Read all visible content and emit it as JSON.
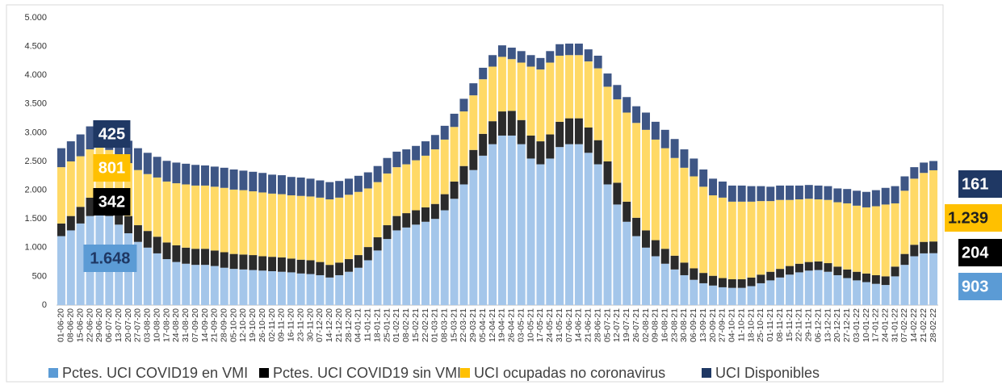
{
  "chart_data": {
    "type": "stacked_bar",
    "categories": [
      "01-06-20",
      "08-06-20",
      "15-06-20",
      "22-06-20",
      "29-06-20",
      "06-07-20",
      "13-07-20",
      "20-07-20",
      "27-07-20",
      "03-08-20",
      "10-08-20",
      "17-08-20",
      "24-08-20",
      "31-08-20",
      "07-09-20",
      "14-09-20",
      "21-09-20",
      "28-09-20",
      "05-10-20",
      "12-10-20",
      "19-10-20",
      "26-10-20",
      "02-11-20",
      "09-11-20",
      "16-11-20",
      "23-11-20",
      "30-11-20",
      "07-12-20",
      "14-12-20",
      "21-12-20",
      "28-12-20",
      "04-01-21",
      "11-01-21",
      "18-01-21",
      "25-01-21",
      "01-02-21",
      "08-02-21",
      "15-02-21",
      "22-02-21",
      "01-03-21",
      "08-03-21",
      "15-03-21",
      "22-03-21",
      "29-03-21",
      "05-04-21",
      "12-04-21",
      "19-04-21",
      "26-04-21",
      "03-05-21",
      "10-05-21",
      "17-05-21",
      "24-05-21",
      "31-05-21",
      "07-06-21",
      "14-06-21",
      "21-06-21",
      "28-06-21",
      "05-07-21",
      "12-07-21",
      "19-07-21",
      "26-07-21",
      "02-08-21",
      "09-08-21",
      "16-08-21",
      "23-08-21",
      "30-08-21",
      "06-09-21",
      "13-09-21",
      "20-09-21",
      "27-09-21",
      "04-10-21",
      "11-10-21",
      "18-10-21",
      "25-10-21",
      "01-11-21",
      "08-11-21",
      "15-11-21",
      "22-11-21",
      "29-11-21",
      "06-12-21",
      "13-12-21",
      "20-12-21",
      "27-12-21",
      "03-01-22",
      "10-01-22",
      "17-01-22",
      "24-01-22",
      "31-01-22",
      "07-02-22",
      "14-02-22",
      "21-02-22",
      "28-02-22"
    ],
    "series": [
      {
        "name": "Pctes. UCI COVID19 en VMI",
        "color": "#a4c6ea",
        "values": [
          1200,
          1300,
          1420,
          1550,
          1648,
          1550,
          1400,
          1250,
          1100,
          1000,
          900,
          800,
          750,
          720,
          700,
          700,
          680,
          650,
          630,
          620,
          610,
          600,
          590,
          580,
          570,
          550,
          540,
          520,
          480,
          520,
          580,
          650,
          780,
          950,
          1150,
          1300,
          1350,
          1400,
          1450,
          1500,
          1650,
          1850,
          2100,
          2350,
          2600,
          2800,
          2950,
          2950,
          2800,
          2550,
          2450,
          2550,
          2750,
          2800,
          2800,
          2650,
          2450,
          2100,
          1750,
          1450,
          1200,
          1000,
          850,
          720,
          620,
          520,
          440,
          380,
          340,
          310,
          300,
          300,
          330,
          380,
          430,
          480,
          530,
          570,
          600,
          610,
          580,
          520,
          470,
          430,
          400,
          370,
          350,
          500,
          700,
          850,
          900,
          903
        ],
        "value_labels": [
          null,
          null,
          null,
          null,
          "1.648",
          null,
          null,
          null,
          null,
          null,
          null,
          null,
          null,
          null,
          null,
          null,
          null,
          null,
          null,
          null,
          null,
          null,
          null,
          null,
          null,
          null,
          null,
          null,
          null,
          null,
          null,
          null,
          null,
          null,
          null,
          null,
          null,
          null,
          null,
          null,
          null,
          null,
          null,
          null,
          null,
          null,
          null,
          null,
          null,
          null,
          null,
          null,
          null,
          null,
          null,
          null,
          null,
          null,
          null,
          null,
          null,
          null,
          null,
          null,
          null,
          null,
          null,
          null,
          null,
          null,
          null,
          null,
          null,
          null,
          null,
          null,
          null,
          null,
          null,
          null,
          null,
          null,
          null,
          null,
          null,
          null,
          null,
          null,
          null,
          null,
          null,
          "903"
        ]
      },
      {
        "name": "Pctes. UCI COVID19 sin VMI",
        "color": "#2b2b2b",
        "values": [
          220,
          250,
          290,
          320,
          342,
          330,
          310,
          300,
          290,
          290,
          290,
          290,
          290,
          280,
          280,
          280,
          270,
          270,
          260,
          260,
          260,
          250,
          250,
          250,
          240,
          240,
          240,
          230,
          220,
          220,
          220,
          220,
          230,
          230,
          240,
          250,
          250,
          250,
          250,
          260,
          280,
          300,
          320,
          350,
          380,
          400,
          420,
          430,
          420,
          400,
          400,
          420,
          440,
          450,
          450,
          440,
          420,
          400,
          380,
          350,
          320,
          300,
          280,
          260,
          240,
          220,
          200,
          180,
          170,
          160,
          150,
          150,
          150,
          150,
          150,
          150,
          150,
          150,
          150,
          150,
          150,
          150,
          150,
          150,
          150,
          150,
          150,
          170,
          190,
          200,
          200,
          204
        ],
        "value_labels": [
          null,
          null,
          null,
          null,
          "342",
          null,
          null,
          null,
          null,
          null,
          null,
          null,
          null,
          null,
          null,
          null,
          null,
          null,
          null,
          null,
          null,
          null,
          null,
          null,
          null,
          null,
          null,
          null,
          null,
          null,
          null,
          null,
          null,
          null,
          null,
          null,
          null,
          null,
          null,
          null,
          null,
          null,
          null,
          null,
          null,
          null,
          null,
          null,
          null,
          null,
          null,
          null,
          null,
          null,
          null,
          null,
          null,
          null,
          null,
          null,
          null,
          null,
          null,
          null,
          null,
          null,
          null,
          null,
          null,
          null,
          null,
          null,
          null,
          null,
          null,
          null,
          null,
          null,
          null,
          null,
          null,
          null,
          null,
          null,
          null,
          null,
          null,
          null,
          null,
          null,
          null,
          "204"
        ]
      },
      {
        "name": "UCI ocupadas no coronavirus",
        "color": "#ffd966",
        "values": [
          980,
          950,
          880,
          840,
          801,
          820,
          870,
          920,
          960,
          990,
          1030,
          1060,
          1080,
          1100,
          1100,
          1100,
          1110,
          1120,
          1120,
          1120,
          1110,
          1110,
          1100,
          1100,
          1100,
          1110,
          1110,
          1120,
          1140,
          1130,
          1120,
          1100,
          1020,
          960,
          900,
          850,
          850,
          870,
          900,
          950,
          950,
          950,
          950,
          950,
          950,
          950,
          950,
          900,
          1000,
          1200,
          1250,
          1250,
          1150,
          1100,
          1100,
          1150,
          1250,
          1300,
          1450,
          1550,
          1650,
          1750,
          1750,
          1750,
          1700,
          1650,
          1600,
          1500,
          1400,
          1400,
          1350,
          1350,
          1320,
          1280,
          1230,
          1200,
          1150,
          1120,
          1100,
          1080,
          1100,
          1120,
          1150,
          1150,
          1150,
          1200,
          1250,
          1100,
          1100,
          1150,
          1200,
          1239
        ],
        "value_labels": [
          null,
          null,
          null,
          null,
          "801",
          null,
          null,
          null,
          null,
          null,
          null,
          null,
          null,
          null,
          null,
          null,
          null,
          null,
          null,
          null,
          null,
          null,
          null,
          null,
          null,
          null,
          null,
          null,
          null,
          null,
          null,
          null,
          null,
          null,
          null,
          null,
          null,
          null,
          null,
          null,
          null,
          null,
          null,
          null,
          null,
          null,
          null,
          null,
          null,
          null,
          null,
          null,
          null,
          null,
          null,
          null,
          null,
          null,
          null,
          null,
          null,
          null,
          null,
          null,
          null,
          null,
          null,
          null,
          null,
          null,
          null,
          null,
          null,
          null,
          null,
          null,
          null,
          null,
          null,
          null,
          null,
          null,
          null,
          null,
          null,
          null,
          null,
          null,
          null,
          null,
          null,
          "1.239"
        ]
      },
      {
        "name": "UCI Disponibles",
        "color": "#3e5685",
        "values": [
          330,
          350,
          380,
          400,
          425,
          420,
          400,
          390,
          380,
          370,
          360,
          360,
          360,
          360,
          360,
          350,
          350,
          350,
          350,
          340,
          340,
          340,
          330,
          330,
          320,
          320,
          310,
          300,
          300,
          290,
          280,
          280,
          280,
          280,
          270,
          270,
          260,
          250,
          250,
          250,
          240,
          230,
          220,
          210,
          200,
          200,
          200,
          200,
          200,
          200,
          200,
          200,
          200,
          200,
          200,
          210,
          220,
          230,
          250,
          270,
          290,
          300,
          310,
          320,
          330,
          320,
          310,
          300,
          290,
          280,
          280,
          280,
          270,
          260,
          250,
          250,
          250,
          240,
          240,
          240,
          240,
          240,
          250,
          260,
          270,
          280,
          290,
          300,
          250,
          200,
          180,
          161
        ],
        "value_labels": [
          null,
          null,
          null,
          null,
          "425",
          null,
          null,
          null,
          null,
          null,
          null,
          null,
          null,
          null,
          null,
          null,
          null,
          null,
          null,
          null,
          null,
          null,
          null,
          null,
          null,
          null,
          null,
          null,
          null,
          null,
          null,
          null,
          null,
          null,
          null,
          null,
          null,
          null,
          null,
          null,
          null,
          null,
          null,
          null,
          null,
          null,
          null,
          null,
          null,
          null,
          null,
          null,
          null,
          null,
          null,
          null,
          null,
          null,
          null,
          null,
          null,
          null,
          null,
          null,
          null,
          null,
          null,
          null,
          null,
          null,
          null,
          null,
          null,
          null,
          null,
          null,
          null,
          null,
          null,
          null,
          null,
          null,
          null,
          null,
          null,
          null,
          null,
          null,
          null,
          null,
          null,
          "161"
        ]
      }
    ],
    "ylim": [
      0,
      5000
    ],
    "yticks": [
      0,
      {
        "value": 500,
        "label": "500"
      },
      {
        "value": 1000,
        "label": "1.000"
      },
      {
        "value": 1500,
        "label": "1.500"
      },
      {
        "value": 2000,
        "label": "2.000"
      },
      {
        "value": 2500,
        "label": "2.500"
      },
      {
        "value": 3000,
        "label": "3.000"
      },
      {
        "value": 3500,
        "label": "3.500"
      },
      {
        "value": 4000,
        "label": "4.000"
      },
      {
        "value": 4500,
        "label": "4.500"
      },
      {
        "value": 5000,
        "label": "5.000"
      }
    ],
    "grid": false,
    "legend": "bottom"
  }
}
